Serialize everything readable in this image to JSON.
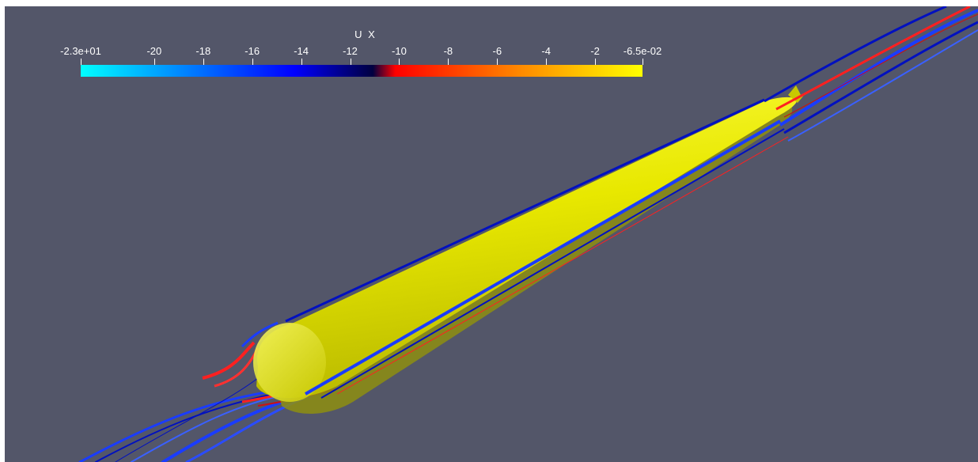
{
  "colorbar": {
    "title": "U X",
    "range": [
      -23,
      -0.065
    ],
    "colormap": "blue-to-red-to-yellow",
    "colors": [
      "#00ffff",
      "#0000ff",
      "#000040",
      "#ff0000",
      "#ff8800",
      "#ffff00"
    ],
    "ticks": [
      {
        "value": -23,
        "label": "-2.3e+01"
      },
      {
        "value": -20,
        "label": "-20"
      },
      {
        "value": -18,
        "label": "-18"
      },
      {
        "value": -16,
        "label": "-16"
      },
      {
        "value": -14,
        "label": "-14"
      },
      {
        "value": -12,
        "label": "-12"
      },
      {
        "value": -10,
        "label": "-10"
      },
      {
        "value": -8,
        "label": "-8"
      },
      {
        "value": -6,
        "label": "-6"
      },
      {
        "value": -4,
        "label": "-4"
      },
      {
        "value": -2,
        "label": "-2"
      },
      {
        "value": -0.065,
        "label": "-6.5e-02"
      }
    ]
  },
  "scene": {
    "background": "#535669",
    "body_color": "#e8e800",
    "streamline_colors": [
      "#1a3cff",
      "#0010c0",
      "#ff2020",
      "#3a60ff"
    ]
  }
}
